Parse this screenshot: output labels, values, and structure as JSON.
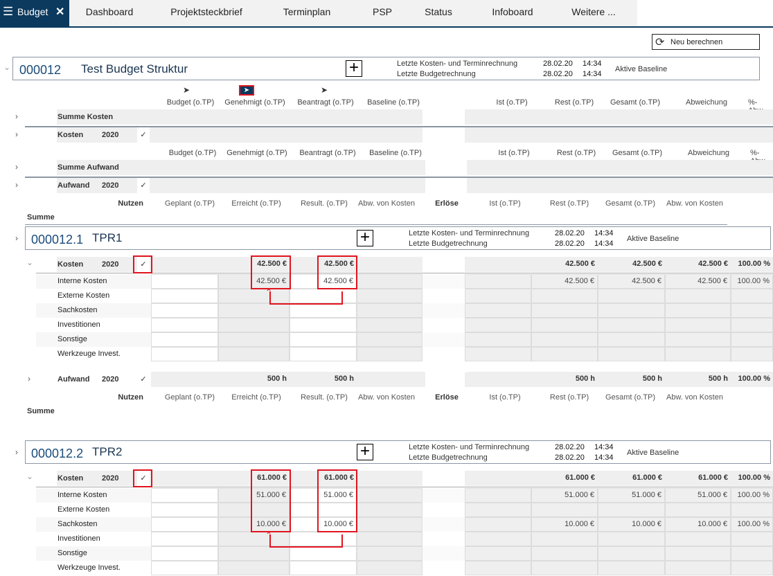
{
  "tabs": {
    "active": "Budget",
    "items": [
      "Dashboard",
      "Projektsteckbrief",
      "Terminplan",
      "PSP",
      "Status",
      "Infoboard",
      "Weitere ..."
    ]
  },
  "toolbar": {
    "recalc_label": "Neu berechnen"
  },
  "project": {
    "id": "000012",
    "title": "Test Budget Struktur",
    "cost_calc_label": "Letzte Kosten- und Terminrechnung",
    "budget_calc_label": "Letzte Budgetrechnung",
    "cost_date": "28.02.20",
    "cost_time": "14:34",
    "budget_date": "28.02.20",
    "budget_time": "14:34",
    "baseline_label": "Aktive Baseline"
  },
  "columns": {
    "left": [
      "Budget (o.TP)",
      "Genehmigt (o.TP)",
      "Beantragt (o.TP)",
      "Baseline (o.TP)"
    ],
    "right": [
      "Ist (o.TP)",
      "Rest (o.TP)",
      "Gesamt (o.TP)",
      "Abweichung",
      "%-Abw."
    ],
    "active_filter": "Genehmigt (o.TP)"
  },
  "summary": {
    "summe_kosten": "Summe Kosten",
    "kosten": "Kosten",
    "summe_aufwand": "Summe Aufwand",
    "aufwand": "Aufwand",
    "year": "2020",
    "check": "✓"
  },
  "benefit_header": {
    "nutzen": "Nutzen",
    "geplant": "Geplant (o.TP)",
    "erreicht": "Erreicht (o.TP)",
    "result": "Result. (o.TP)",
    "abw1": "Abw. von Kosten",
    "erloese": "Erlöse",
    "ist": "Ist (o.TP)",
    "rest": "Rest (o.TP)",
    "gesamt": "Gesamt (o.TP)",
    "abw2": "Abw. von Kosten",
    "summe": "Summe"
  },
  "subprojects": [
    {
      "id": "000012.1",
      "title": "TPR1",
      "cost_date": "28.02.20",
      "cost_time": "14:34",
      "budget_date": "28.02.20",
      "budget_time": "14:34",
      "kosten": {
        "label": "Kosten",
        "year": "2020",
        "values": [
          "",
          "42.500 €",
          "42.500 €",
          "",
          "",
          "42.500 €",
          "42.500 €",
          "42.500 €",
          "100.00 %"
        ]
      },
      "rows": [
        {
          "label": "Interne Kosten",
          "values": [
            "",
            "42.500 €",
            "42.500 €",
            "",
            "",
            "42.500 €",
            "42.500 €",
            "42.500 €",
            "100.00 %"
          ]
        },
        {
          "label": "Externe Kosten",
          "values": [
            "",
            "",
            "",
            "",
            "",
            "",
            "",
            "",
            ""
          ]
        },
        {
          "label": "Sachkosten",
          "values": [
            "",
            "",
            "",
            "",
            "",
            "",
            "",
            "",
            ""
          ]
        },
        {
          "label": "Investitionen",
          "values": [
            "",
            "",
            "",
            "",
            "",
            "",
            "",
            "",
            ""
          ]
        },
        {
          "label": "Sonstige",
          "values": [
            "",
            "",
            "",
            "",
            "",
            "",
            "",
            "",
            ""
          ]
        },
        {
          "label": "Werkzeuge Invest.",
          "values": [
            "",
            "",
            "",
            "",
            "",
            "",
            "",
            "",
            ""
          ]
        }
      ],
      "aufwand": {
        "label": "Aufwand",
        "year": "2020",
        "values": [
          "",
          "500 h",
          "500 h",
          "",
          "",
          "500 h",
          "500 h",
          "500 h",
          "100.00 %"
        ]
      }
    },
    {
      "id": "000012.2",
      "title": "TPR2",
      "cost_date": "28.02.20",
      "cost_time": "14:34",
      "budget_date": "28.02.20",
      "budget_time": "14:34",
      "kosten": {
        "label": "Kosten",
        "year": "2020",
        "values": [
          "",
          "61.000 €",
          "61.000 €",
          "",
          "",
          "61.000 €",
          "61.000 €",
          "61.000 €",
          "100.00 %"
        ]
      },
      "rows": [
        {
          "label": "Interne Kosten",
          "values": [
            "",
            "51.000 €",
            "51.000 €",
            "",
            "",
            "51.000 €",
            "51.000 €",
            "51.000 €",
            "100.00 %"
          ]
        },
        {
          "label": "Externe Kosten",
          "values": [
            "",
            "",
            "",
            "",
            "",
            "",
            "",
            "",
            ""
          ]
        },
        {
          "label": "Sachkosten",
          "values": [
            "",
            "10.000 €",
            "10.000 €",
            "",
            "",
            "10.000 €",
            "10.000 €",
            "10.000 €",
            "100.00 %"
          ]
        },
        {
          "label": "Investitionen",
          "values": [
            "",
            "",
            "",
            "",
            "",
            "",
            "",
            "",
            ""
          ]
        },
        {
          "label": "Sonstige",
          "values": [
            "",
            "",
            "",
            "",
            "",
            "",
            "",
            "",
            ""
          ]
        },
        {
          "label": "Werkzeuge Invest.",
          "values": [
            "",
            "",
            "",
            "",
            "",
            "",
            "",
            "",
            ""
          ]
        }
      ]
    }
  ],
  "colors": {
    "brand": "#0b3a5e",
    "annotation": "#e0141e",
    "cell_grey": "#efefef"
  }
}
